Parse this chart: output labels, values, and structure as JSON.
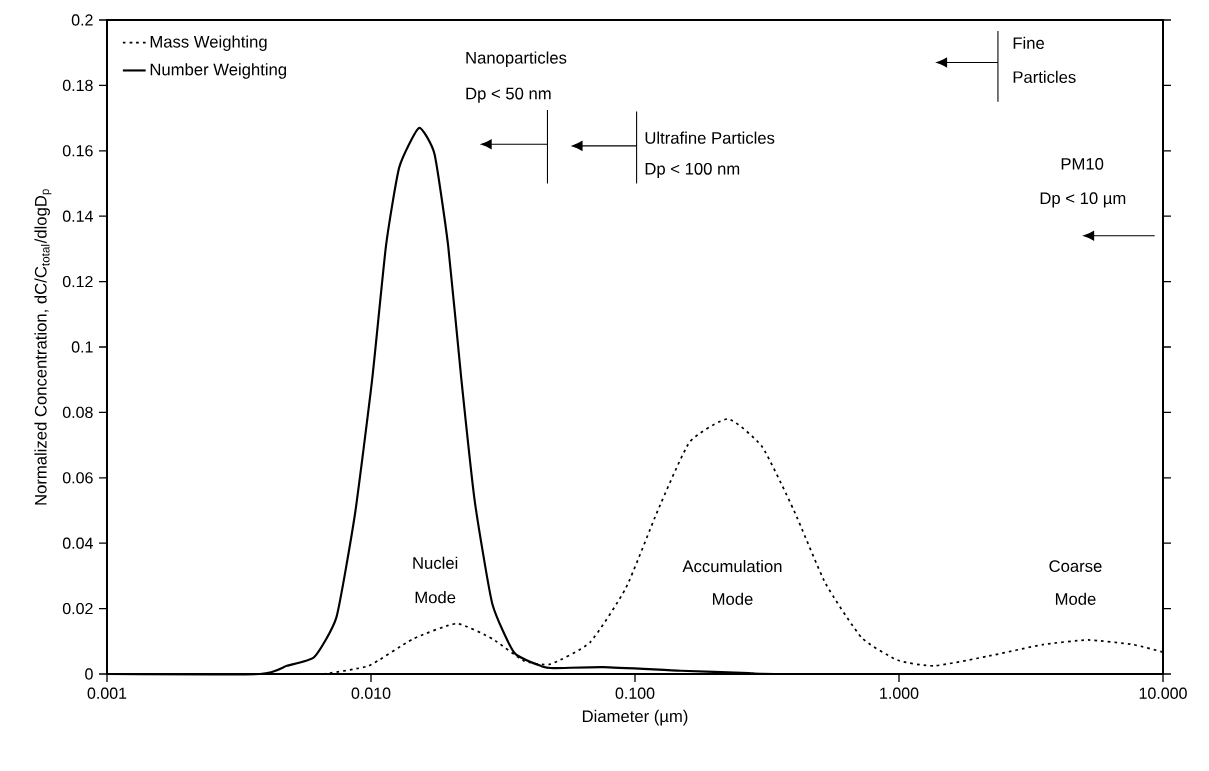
{
  "chart_data": {
    "type": "line",
    "xlabel": "Diameter (µm)",
    "ylabel": "Normalized Concentration, dC/C$_{total}$/dlogD$_{p}$",
    "log": "x",
    "grid": false,
    "legend": "top left",
    "marker": "none",
    "xlim": [
      0.001,
      10
    ],
    "ylim": [
      0,
      0.2
    ],
    "xticks": [
      {
        "value": 0.001,
        "label": "0.001"
      },
      {
        "value": 0.01,
        "label": "0.010"
      },
      {
        "value": 0.1,
        "label": "0.100"
      },
      {
        "value": 1,
        "label": "1.000"
      },
      {
        "value": 10,
        "label": "10.000"
      }
    ],
    "yticks": [
      0,
      0.02,
      0.04,
      0.06,
      0.08,
      0.1,
      0.12,
      0.14,
      0.16,
      0.18,
      0.2
    ],
    "series": [
      {
        "name": "Mass Weighting",
        "color": "#000000",
        "line_style": "dotted",
        "x": [
          0.0066,
          0.0098,
          0.0144,
          0.0211,
          0.0289,
          0.0378,
          0.0478,
          0.0676,
          0.0925,
          0.122,
          0.161,
          0.225,
          0.303,
          0.4,
          0.526,
          0.722,
          0.99,
          1.36,
          2.19,
          3.51,
          5.21,
          7.71,
          10
        ],
        "values": [
          0,
          0.0025,
          0.0107,
          0.0154,
          0.0107,
          0.0041,
          0.003,
          0.0097,
          0.0264,
          0.05,
          0.0709,
          0.078,
          0.0695,
          0.05,
          0.0278,
          0.0111,
          0.0042,
          0.0025,
          0.0055,
          0.009,
          0.0104,
          0.009,
          0.0067
        ]
      },
      {
        "name": "Number Weighting",
        "color": "#000000",
        "line_style": "solid",
        "x": [
          0.001,
          0.0038,
          0.0048,
          0.0061,
          0.0074,
          0.0087,
          0.0101,
          0.0114,
          0.0128,
          0.0152,
          0.0174,
          0.0196,
          0.022,
          0.0247,
          0.0288,
          0.0349,
          0.0442,
          0.0493,
          0.076,
          0.149,
          0.27,
          0.356,
          10
        ],
        "values": [
          0,
          0,
          0.0025,
          0.0052,
          0.0174,
          0.049,
          0.09,
          0.131,
          0.155,
          0.167,
          0.159,
          0.131,
          0.09,
          0.053,
          0.0215,
          0.0065,
          0.0024,
          0.0018,
          0.0021,
          0.001,
          0.0003,
          0,
          0
        ]
      }
    ],
    "annotations": [
      "Nanoparticles",
      "Dp < 50 nm",
      "Ultrafine Particles",
      "Dp < 100 nm",
      "Fine",
      "Particles",
      "PM10",
      "Dp < 10 µm",
      "Nuclei",
      "Mode",
      "Accumulation",
      "Mode",
      "Coarse",
      "Mode"
    ]
  }
}
